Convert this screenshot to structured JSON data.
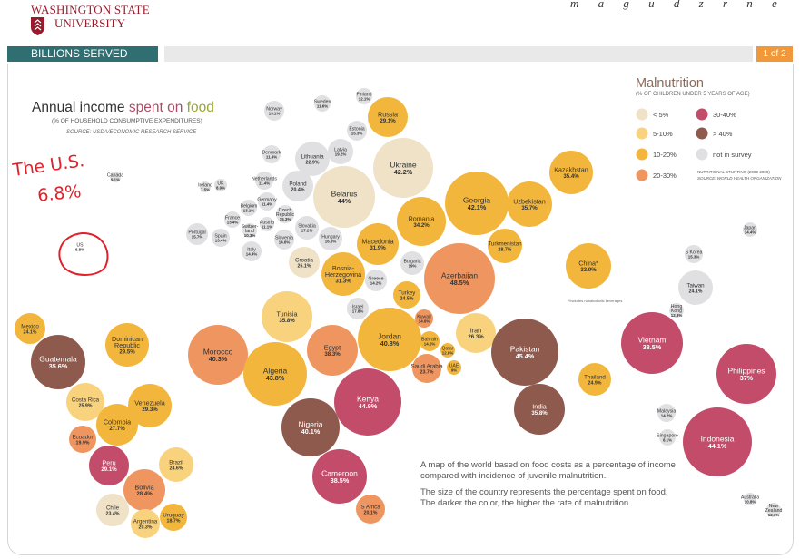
{
  "header": {
    "logo_line1": "WASHINGTON STATE",
    "logo_line2": "UNIVERSITY",
    "scribble": "m a g u d z r n e",
    "section_label": "BILLIONS SERVED",
    "page_indicator": "1 of 2"
  },
  "annotation": {
    "text_line1": "The U.S.",
    "text_line2": "6.8%",
    "color": "#e0202a"
  },
  "colors": {
    "lt5": "#efe2c6",
    "r5_10": "#f8d27c",
    "r10_20": "#f2b63c",
    "r20_30": "#ef9560",
    "r30_40": "#c24c6a",
    "gt40": "#8e5a4d",
    "not_in_survey": "#e0e0e2"
  },
  "chart_data": {
    "type": "bubble",
    "title": {
      "part1": "Annual income",
      "part2": "spent on",
      "part3": "food"
    },
    "subtitle": "(% OF HOUSEHOLD CONSUMPTIVE EXPENDITURES)",
    "source": "SOURCE: USDA/ECONOMIC RESEARCH SERVICE",
    "legend": {
      "title": "Malnutrition",
      "subtitle": "(% OF CHILDREN UNDER 5 YEARS OF AGE)",
      "placement": "top-right",
      "entries": [
        {
          "label": "< 5%",
          "color": "#efe2c6"
        },
        {
          "label": "5-10%",
          "color": "#f8d27c"
        },
        {
          "label": "10-20%",
          "color": "#f2b63c"
        },
        {
          "label": "20-30%",
          "color": "#ef9560"
        },
        {
          "label": "30-40%",
          "color": "#c24c6a"
        },
        {
          "label": "> 40%",
          "color": "#8e5a4d"
        },
        {
          "label": "not in survey",
          "color": "#e0e0e2"
        }
      ],
      "note1": "NUTRITIONAL STUNTING (2003-2008)",
      "note2": "SOURCE: WORLD HEALTH ORGANIZATION"
    },
    "china_note": "*includes nonalcoholic beverages",
    "description": [
      "A map of the world based on food costs as a percentage of income",
      "compared with incidence of juvenile malnutrition.",
      "",
      "The size of the country represents the percentage spent on food.",
      "The darker the color, the higher the rate of malnutrition."
    ],
    "countries": [
      {
        "name": "Canada",
        "value": "9.1%",
        "cat": "none"
      },
      {
        "name": "US",
        "value": "6.8%",
        "cat": "none"
      },
      {
        "name": "Mexico",
        "value": "24.1%",
        "cat": "r10_20"
      },
      {
        "name": "Guatemala",
        "value": "35.6%",
        "cat": "gt40"
      },
      {
        "name": "Dominican Republic",
        "value": "29.5%",
        "cat": "r10_20"
      },
      {
        "name": "Costa Rica",
        "value": "25.9%",
        "cat": "r5_10"
      },
      {
        "name": "Venezuela",
        "value": "29.3%",
        "cat": "r10_20"
      },
      {
        "name": "Colombia",
        "value": "27.7%",
        "cat": "r10_20"
      },
      {
        "name": "Ecuador",
        "value": "19.9%",
        "cat": "r20_30"
      },
      {
        "name": "Peru",
        "value": "29.1%",
        "cat": "r30_40"
      },
      {
        "name": "Brazil",
        "value": "24.6%",
        "cat": "r5_10"
      },
      {
        "name": "Bolivia",
        "value": "28.4%",
        "cat": "r20_30"
      },
      {
        "name": "Chile",
        "value": "23.4%",
        "cat": "lt5"
      },
      {
        "name": "Argentina",
        "value": "20.3%",
        "cat": "r5_10"
      },
      {
        "name": "Uruguay",
        "value": "18.7%",
        "cat": "r10_20"
      },
      {
        "name": "Norway",
        "value": "13.1%",
        "cat": "none"
      },
      {
        "name": "Sweden",
        "value": "11.6%",
        "cat": "none"
      },
      {
        "name": "Finland",
        "value": "12.1%",
        "cat": "none"
      },
      {
        "name": "Russia",
        "value": "29.1%",
        "cat": "r10_20"
      },
      {
        "name": "Estonia",
        "value": "15.3%",
        "cat": "none"
      },
      {
        "name": "Latvia",
        "value": "19.2%",
        "cat": "none"
      },
      {
        "name": "Lithuania",
        "value": "22.9%",
        "cat": "none"
      },
      {
        "name": "Denmark",
        "value": "11.4%",
        "cat": "none"
      },
      {
        "name": "Ireland",
        "value": "7.5%",
        "cat": "none"
      },
      {
        "name": "UK",
        "value": "8.9%",
        "cat": "none"
      },
      {
        "name": "Netherlands",
        "value": "11.4%",
        "cat": "none"
      },
      {
        "name": "Poland",
        "value": "20.4%",
        "cat": "none"
      },
      {
        "name": "Belarus",
        "value": "44%",
        "cat": "lt5"
      },
      {
        "name": "Ukraine",
        "value": "42.2%",
        "cat": "lt5"
      },
      {
        "name": "Germany",
        "value": "11.4%",
        "cat": "none"
      },
      {
        "name": "Belgium",
        "value": "13.1%",
        "cat": "none"
      },
      {
        "name": "France",
        "value": "13.4%",
        "cat": "none"
      },
      {
        "name": "Czech Republic",
        "value": "15.3%",
        "cat": "none"
      },
      {
        "name": "Austria",
        "value": "11.1%",
        "cat": "none"
      },
      {
        "name": "Switzerland",
        "value": "10.3%",
        "cat": "none"
      },
      {
        "name": "Slovakia",
        "value": "17.2%",
        "cat": "none"
      },
      {
        "name": "Slovenia",
        "value": "14.6%",
        "cat": "none"
      },
      {
        "name": "Hungary",
        "value": "16.6%",
        "cat": "none"
      },
      {
        "name": "Portugal",
        "value": "15.7%",
        "cat": "none"
      },
      {
        "name": "Spain",
        "value": "13.4%",
        "cat": "none"
      },
      {
        "name": "Italy",
        "value": "14.4%",
        "cat": "none"
      },
      {
        "name": "Croatia",
        "value": "26.1%",
        "cat": "lt5"
      },
      {
        "name": "Bosnia-Herzegovina",
        "value": "31.3%",
        "cat": "r10_20"
      },
      {
        "name": "Macedonia",
        "value": "31.9%",
        "cat": "r10_20"
      },
      {
        "name": "Romania",
        "value": "34.2%",
        "cat": "r10_20"
      },
      {
        "name": "Bulgaria",
        "value": "19%",
        "cat": "none"
      },
      {
        "name": "Greece",
        "value": "14.2%",
        "cat": "none"
      },
      {
        "name": "Turkey",
        "value": "24.5%",
        "cat": "r10_20"
      },
      {
        "name": "Georgia",
        "value": "42.1%",
        "cat": "r10_20"
      },
      {
        "name": "Uzbekistan",
        "value": "35.7%",
        "cat": "r10_20"
      },
      {
        "name": "Kazakhstan",
        "value": "35.4%",
        "cat": "r10_20"
      },
      {
        "name": "Turkmenistan",
        "value": "28.7%",
        "cat": "r10_20"
      },
      {
        "name": "Azerbaijan",
        "value": "48.5%",
        "cat": "r20_30"
      },
      {
        "name": "China*",
        "value": "33.9%",
        "cat": "r10_20"
      },
      {
        "name": "Japan",
        "value": "14.4%",
        "cat": "none"
      },
      {
        "name": "S Korea",
        "value": "15.3%",
        "cat": "none"
      },
      {
        "name": "Taiwan",
        "value": "24.1%",
        "cat": "none"
      },
      {
        "name": "Hong Kong",
        "value": "12.3%",
        "cat": "none"
      },
      {
        "name": "Israel",
        "value": "17.8%",
        "cat": "none"
      },
      {
        "name": "Tunisia",
        "value": "35.8%",
        "cat": "r5_10"
      },
      {
        "name": "Morocco",
        "value": "40.3%",
        "cat": "r20_30"
      },
      {
        "name": "Algeria",
        "value": "43.8%",
        "cat": "r10_20"
      },
      {
        "name": "Egypt",
        "value": "38.3%",
        "cat": "r20_30"
      },
      {
        "name": "Jordan",
        "value": "40.8%",
        "cat": "r10_20"
      },
      {
        "name": "Kuwait",
        "value": "14.6%",
        "cat": "r20_30"
      },
      {
        "name": "Bahrain",
        "value": "14.5%",
        "cat": "r10_20"
      },
      {
        "name": "Qatar",
        "value": "12.8%",
        "cat": "r10_20"
      },
      {
        "name": "UAE",
        "value": "9%",
        "cat": "r10_20"
      },
      {
        "name": "Saudi Arabia",
        "value": "23.7%",
        "cat": "r20_30"
      },
      {
        "name": "Iran",
        "value": "26.3%",
        "cat": "r5_10"
      },
      {
        "name": "Pakistan",
        "value": "45.4%",
        "cat": "gt40"
      },
      {
        "name": "India",
        "value": "35.8%",
        "cat": "gt40"
      },
      {
        "name": "Kenya",
        "value": "44.9%",
        "cat": "r30_40"
      },
      {
        "name": "Nigeria",
        "value": "40.1%",
        "cat": "gt40"
      },
      {
        "name": "Cameroon",
        "value": "38.5%",
        "cat": "r30_40"
      },
      {
        "name": "S Africa",
        "value": "20.1%",
        "cat": "r20_30"
      },
      {
        "name": "Vietnam",
        "value": "38.5%",
        "cat": "r30_40"
      },
      {
        "name": "Thailand",
        "value": "24.9%",
        "cat": "r10_20"
      },
      {
        "name": "Philippines",
        "value": "37%",
        "cat": "r30_40"
      },
      {
        "name": "Malaysia",
        "value": "14.2%",
        "cat": "none"
      },
      {
        "name": "Singapore",
        "value": "8.1%",
        "cat": "none"
      },
      {
        "name": "Indonesia",
        "value": "44.1%",
        "cat": "r30_40"
      },
      {
        "name": "Australia",
        "value": "10.8%",
        "cat": "none"
      },
      {
        "name": "New Zealand",
        "value": "12.1%",
        "cat": "none"
      }
    ]
  }
}
